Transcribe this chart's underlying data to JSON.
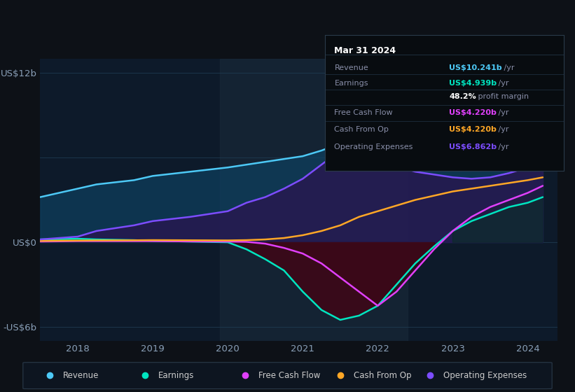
{
  "background_color": "#0d1117",
  "chart_bg": "#0d1a2a",
  "ylabel_top": "US$12b",
  "ylabel_mid": "US$0",
  "ylabel_bot": "-US$6b",
  "x_years": [
    2018,
    2019,
    2020,
    2021,
    2022,
    2023,
    2024
  ],
  "tooltip": {
    "title": "Mar 31 2024",
    "rows": [
      {
        "label": "Revenue",
        "value": "US$10.241b",
        "suffix": " /yr",
        "value_color": "#4dc9f6"
      },
      {
        "label": "Earnings",
        "value": "US$4.939b",
        "suffix": " /yr",
        "value_color": "#00e5c0"
      },
      {
        "label": "",
        "value": "48.2%",
        "suffix": " profit margin",
        "value_color": "#ffffff"
      },
      {
        "label": "Free Cash Flow",
        "value": "US$4.220b",
        "suffix": " /yr",
        "value_color": "#e040fb"
      },
      {
        "label": "Cash From Op",
        "value": "US$4.220b",
        "suffix": " /yr",
        "value_color": "#ffa726"
      },
      {
        "label": "Operating Expenses",
        "value": "US$6.862b",
        "suffix": " /yr",
        "value_color": "#7c4dff"
      }
    ]
  },
  "legend": [
    {
      "label": "Revenue",
      "color": "#4dc9f6"
    },
    {
      "label": "Earnings",
      "color": "#00e5c0"
    },
    {
      "label": "Free Cash Flow",
      "color": "#e040fb"
    },
    {
      "label": "Cash From Op",
      "color": "#ffa726"
    },
    {
      "label": "Operating Expenses",
      "color": "#7c4dff"
    }
  ],
  "series": {
    "x": [
      2017.5,
      2018.0,
      2018.25,
      2018.75,
      2019.0,
      2019.5,
      2020.0,
      2020.25,
      2020.5,
      2020.75,
      2021.0,
      2021.25,
      2021.5,
      2021.75,
      2022.0,
      2022.25,
      2022.5,
      2022.75,
      2023.0,
      2023.25,
      2023.5,
      2023.75,
      2024.0,
      2024.2
    ],
    "revenue": [
      3.2,
      3.8,
      4.1,
      4.4,
      4.7,
      5.0,
      5.3,
      5.5,
      5.7,
      5.9,
      6.1,
      6.5,
      7.0,
      7.5,
      8.0,
      8.4,
      8.8,
      9.1,
      9.4,
      9.6,
      9.9,
      10.2,
      10.5,
      10.8
    ],
    "earnings": [
      0.2,
      0.25,
      0.2,
      0.15,
      0.1,
      0.05,
      0.0,
      -0.5,
      -1.2,
      -2.0,
      -3.5,
      -4.8,
      -5.5,
      -5.2,
      -4.5,
      -3.0,
      -1.5,
      -0.3,
      0.8,
      1.5,
      2.0,
      2.5,
      2.8,
      3.2
    ],
    "free_cash": [
      0.05,
      0.08,
      0.08,
      0.08,
      0.08,
      0.06,
      0.05,
      0.03,
      -0.1,
      -0.4,
      -0.8,
      -1.5,
      -2.5,
      -3.5,
      -4.5,
      -3.5,
      -2.0,
      -0.5,
      0.8,
      1.8,
      2.5,
      3.0,
      3.5,
      4.0
    ],
    "cash_from_op": [
      0.1,
      0.12,
      0.13,
      0.14,
      0.15,
      0.14,
      0.13,
      0.15,
      0.2,
      0.3,
      0.5,
      0.8,
      1.2,
      1.8,
      2.2,
      2.6,
      3.0,
      3.3,
      3.6,
      3.8,
      4.0,
      4.2,
      4.4,
      4.6
    ],
    "op_expenses": [
      0.2,
      0.4,
      0.8,
      1.2,
      1.5,
      1.8,
      2.2,
      2.8,
      3.2,
      3.8,
      4.5,
      5.5,
      6.5,
      6.2,
      5.8,
      5.4,
      5.0,
      4.8,
      4.6,
      4.5,
      4.6,
      4.9,
      5.3,
      6.0
    ]
  },
  "highlight_x_start": 2019.9,
  "highlight_x_end": 2022.4,
  "ylim": [
    -7,
    13
  ],
  "xlim": [
    2017.5,
    2024.4
  ]
}
